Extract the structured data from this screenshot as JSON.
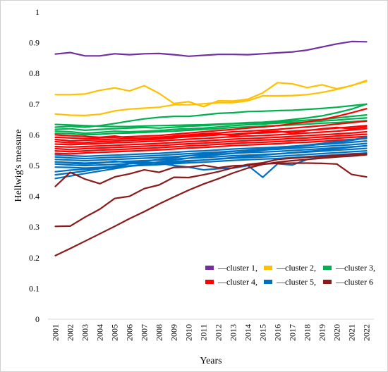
{
  "chart_data": {
    "type": "line",
    "title": "",
    "xlabel": "Years",
    "ylabel": "Hellwig's measure",
    "x": [
      "2001",
      "2002",
      "2003",
      "2004",
      "2005",
      "2006",
      "2007",
      "2008",
      "2009",
      "2010",
      "2011",
      "2012",
      "2013",
      "2014",
      "2015",
      "2016",
      "2017",
      "2018",
      "2019",
      "2020",
      "2021",
      "2022"
    ],
    "yticks": [
      "0",
      "0.1",
      "0.2",
      "0.3",
      "0.4",
      "0.5",
      "0.6",
      "0.7",
      "0.8",
      "0.9",
      "1"
    ],
    "ylim": [
      0,
      1
    ],
    "grid": false,
    "legend_position": "bottom-right",
    "legend": [
      {
        "label": "—cluster 1,",
        "color": "#7030a0"
      },
      {
        "label": "—cluster 2,",
        "color": "#ffc000"
      },
      {
        "label": "—cluster 3,",
        "color": "#00b050"
      },
      {
        "label": "—cluster 4,",
        "color": "#ff0000"
      },
      {
        "label": "—cluster 5,",
        "color": "#0070c0"
      },
      {
        "label": "—cluster 6",
        "color": "#8b1a1a"
      }
    ],
    "series": [
      {
        "cluster": 1,
        "color": "#7030a0",
        "values": [
          0.863,
          0.868,
          0.857,
          0.857,
          0.864,
          0.861,
          0.864,
          0.865,
          0.861,
          0.856,
          0.859,
          0.862,
          0.862,
          0.861,
          0.864,
          0.867,
          0.87,
          0.876,
          0.886,
          0.896,
          0.904,
          0.903
        ]
      },
      {
        "cluster": 2,
        "color": "#ffc000",
        "values": [
          0.731,
          0.731,
          0.733,
          0.745,
          0.753,
          0.743,
          0.76,
          0.735,
          0.702,
          0.708,
          0.692,
          0.711,
          0.71,
          0.716,
          0.737,
          0.77,
          0.766,
          0.754,
          0.763,
          0.75,
          0.76,
          0.777
        ]
      },
      {
        "cluster": 2,
        "color": "#ffc000",
        "values": [
          0.668,
          0.664,
          0.663,
          0.667,
          0.678,
          0.684,
          0.687,
          0.69,
          0.698,
          0.698,
          0.701,
          0.705,
          0.705,
          0.711,
          0.727,
          0.727,
          0.728,
          0.731,
          0.738,
          0.748,
          0.761,
          0.774
        ]
      },
      {
        "cluster": 3,
        "color": "#00b050",
        "values": [
          0.634,
          0.632,
          0.63,
          0.628,
          0.627,
          0.627,
          0.629,
          0.63,
          0.631,
          0.632,
          0.633,
          0.635,
          0.637,
          0.64,
          0.641,
          0.645,
          0.65,
          0.655,
          0.662,
          0.672,
          0.684,
          0.7
        ]
      },
      {
        "cluster": 3,
        "color": "#00b050",
        "values": [
          0.625,
          0.628,
          0.625,
          0.63,
          0.637,
          0.645,
          0.652,
          0.657,
          0.66,
          0.66,
          0.665,
          0.67,
          0.672,
          0.676,
          0.677,
          0.679,
          0.68,
          0.683,
          0.686,
          0.69,
          0.695,
          0.7
        ]
      },
      {
        "cluster": 3,
        "color": "#00b050",
        "values": [
          0.618,
          0.62,
          0.615,
          0.618,
          0.62,
          0.622,
          0.624,
          0.622,
          0.625,
          0.628,
          0.63,
          0.633,
          0.636,
          0.638,
          0.64,
          0.642,
          0.645,
          0.648,
          0.65,
          0.655,
          0.66,
          0.665
        ]
      },
      {
        "cluster": 3,
        "color": "#00b050",
        "values": [
          0.612,
          0.61,
          0.605,
          0.608,
          0.612,
          0.61,
          0.612,
          0.614,
          0.618,
          0.62,
          0.622,
          0.626,
          0.63,
          0.633,
          0.635,
          0.638,
          0.64,
          0.642,
          0.645,
          0.648,
          0.652,
          0.655
        ]
      },
      {
        "cluster": 3,
        "color": "#00b050",
        "values": [
          0.605,
          0.604,
          0.6,
          0.602,
          0.605,
          0.606,
          0.608,
          0.61,
          0.612,
          0.615,
          0.618,
          0.62,
          0.624,
          0.626,
          0.628,
          0.63,
          0.632,
          0.635,
          0.638,
          0.64,
          0.643,
          0.646
        ]
      },
      {
        "cluster": 4,
        "color": "#ff0000",
        "values": [
          0.592,
          0.59,
          0.588,
          0.59,
          0.592,
          0.594,
          0.596,
          0.598,
          0.602,
          0.606,
          0.61,
          0.614,
          0.618,
          0.622,
          0.626,
          0.63,
          0.636,
          0.642,
          0.65,
          0.66,
          0.672,
          0.685
        ]
      },
      {
        "cluster": 4,
        "color": "#ff0000",
        "values": [
          0.585,
          0.58,
          0.582,
          0.584,
          0.586,
          0.588,
          0.59,
          0.592,
          0.596,
          0.6,
          0.604,
          0.606,
          0.61,
          0.612,
          0.615,
          0.618,
          0.622,
          0.626,
          0.63,
          0.635,
          0.64,
          0.645
        ]
      },
      {
        "cluster": 4,
        "color": "#ff0000",
        "values": [
          0.578,
          0.574,
          0.575,
          0.578,
          0.58,
          0.582,
          0.584,
          0.586,
          0.59,
          0.594,
          0.596,
          0.6,
          0.602,
          0.605,
          0.606,
          0.609,
          0.612,
          0.615,
          0.618,
          0.622,
          0.626,
          0.63
        ]
      },
      {
        "cluster": 4,
        "color": "#ff0000",
        "values": [
          0.57,
          0.568,
          0.57,
          0.572,
          0.574,
          0.576,
          0.578,
          0.58,
          0.583,
          0.586,
          0.588,
          0.591,
          0.594,
          0.596,
          0.598,
          0.6,
          0.603,
          0.606,
          0.609,
          0.612,
          0.616,
          0.62
        ]
      },
      {
        "cluster": 4,
        "color": "#ff0000",
        "values": [
          0.562,
          0.56,
          0.562,
          0.564,
          0.566,
          0.568,
          0.57,
          0.572,
          0.575,
          0.578,
          0.58,
          0.583,
          0.586,
          0.588,
          0.59,
          0.592,
          0.595,
          0.598,
          0.6,
          0.603,
          0.606,
          0.61
        ]
      },
      {
        "cluster": 4,
        "color": "#ff0000",
        "values": [
          0.555,
          0.552,
          0.555,
          0.557,
          0.559,
          0.561,
          0.563,
          0.565,
          0.568,
          0.571,
          0.573,
          0.576,
          0.579,
          0.581,
          0.583,
          0.585,
          0.588,
          0.59,
          0.593,
          0.596,
          0.599,
          0.602
        ]
      },
      {
        "cluster": 4,
        "color": "#ff0000",
        "values": [
          0.548,
          0.545,
          0.548,
          0.55,
          0.552,
          0.554,
          0.556,
          0.558,
          0.561,
          0.564,
          0.566,
          0.569,
          0.572,
          0.574,
          0.576,
          0.578,
          0.581,
          0.583,
          0.586,
          0.589,
          0.592,
          0.595
        ]
      },
      {
        "cluster": 4,
        "color": "#ff0000",
        "values": [
          0.54,
          0.538,
          0.541,
          0.543,
          0.545,
          0.547,
          0.549,
          0.551,
          0.554,
          0.557,
          0.559,
          0.562,
          0.565,
          0.567,
          0.569,
          0.571,
          0.574,
          0.576,
          0.579,
          0.582,
          0.585,
          0.588
        ]
      },
      {
        "cluster": 4,
        "color": "#ff0000",
        "values": [
          0.6,
          0.597,
          0.595,
          0.592,
          0.596,
          0.59,
          0.588,
          0.59,
          0.594,
          0.598,
          0.6,
          0.602,
          0.598,
          0.604,
          0.61,
          0.612,
          0.606,
          0.614,
          0.62,
          0.624,
          0.62,
          0.626
        ]
      },
      {
        "cluster": 5,
        "color": "#0070c0",
        "values": [
          0.535,
          0.532,
          0.53,
          0.532,
          0.534,
          0.536,
          0.538,
          0.54,
          0.543,
          0.546,
          0.548,
          0.551,
          0.554,
          0.556,
          0.558,
          0.56,
          0.563,
          0.566,
          0.569,
          0.572,
          0.576,
          0.58
        ]
      },
      {
        "cluster": 5,
        "color": "#0070c0",
        "values": [
          0.528,
          0.525,
          0.523,
          0.525,
          0.527,
          0.529,
          0.531,
          0.533,
          0.536,
          0.539,
          0.541,
          0.544,
          0.547,
          0.549,
          0.551,
          0.553,
          0.556,
          0.559,
          0.562,
          0.565,
          0.568,
          0.572
        ]
      },
      {
        "cluster": 5,
        "color": "#0070c0",
        "values": [
          0.52,
          0.518,
          0.516,
          0.518,
          0.52,
          0.522,
          0.524,
          0.526,
          0.529,
          0.532,
          0.534,
          0.537,
          0.54,
          0.542,
          0.544,
          0.546,
          0.549,
          0.552,
          0.555,
          0.558,
          0.561,
          0.564
        ]
      },
      {
        "cluster": 5,
        "color": "#0070c0",
        "values": [
          0.512,
          0.51,
          0.508,
          0.51,
          0.512,
          0.514,
          0.516,
          0.518,
          0.521,
          0.524,
          0.526,
          0.529,
          0.532,
          0.534,
          0.536,
          0.538,
          0.541,
          0.544,
          0.547,
          0.55,
          0.553,
          0.556
        ]
      },
      {
        "cluster": 5,
        "color": "#0070c0",
        "values": [
          0.505,
          0.502,
          0.5,
          0.502,
          0.504,
          0.506,
          0.508,
          0.51,
          0.513,
          0.516,
          0.518,
          0.521,
          0.524,
          0.526,
          0.528,
          0.53,
          0.533,
          0.536,
          0.539,
          0.542,
          0.545,
          0.548
        ]
      },
      {
        "cluster": 5,
        "color": "#0070c0",
        "values": [
          0.495,
          0.494,
          0.492,
          0.494,
          0.497,
          0.499,
          0.501,
          0.503,
          0.506,
          0.509,
          0.511,
          0.514,
          0.517,
          0.519,
          0.521,
          0.523,
          0.526,
          0.529,
          0.532,
          0.535,
          0.538,
          0.541
        ]
      },
      {
        "cluster": 5,
        "color": "#0070c0",
        "values": [
          0.48,
          0.485,
          0.488,
          0.49,
          0.494,
          0.498,
          0.502,
          0.505,
          0.51,
          0.514,
          0.518,
          0.522,
          0.526,
          0.53,
          0.534,
          0.538,
          0.542,
          0.546,
          0.55,
          0.555,
          0.56,
          0.565
        ]
      },
      {
        "cluster": 5,
        "color": "#0070c0",
        "values": [
          0.47,
          0.476,
          0.482,
          0.49,
          0.498,
          0.506,
          0.514,
          0.52,
          0.526,
          0.532,
          0.537,
          0.542,
          0.546,
          0.55,
          0.554,
          0.558,
          0.562,
          0.567,
          0.572,
          0.578,
          0.584,
          0.592
        ]
      },
      {
        "cluster": 5,
        "color": "#0070c0",
        "values": [
          0.458,
          0.466,
          0.474,
          0.482,
          0.49,
          0.498,
          0.505,
          0.512,
          0.518,
          0.524,
          0.53,
          0.535,
          0.54,
          0.545,
          0.55,
          0.555,
          0.56,
          0.565,
          0.57,
          0.576,
          0.582,
          0.59
        ]
      },
      {
        "cluster": 5,
        "color": "#0070c0",
        "values": [
          0.512,
          0.508,
          0.505,
          0.508,
          0.514,
          0.51,
          0.512,
          0.508,
          0.5,
          0.495,
          0.486,
          0.49,
          0.492,
          0.5,
          0.462,
          0.506,
          0.502,
          0.52,
          0.528,
          0.53,
          0.532,
          0.54
        ]
      },
      {
        "cluster": 6,
        "color": "#8b1a1a",
        "values": [
          0.432,
          0.478,
          0.456,
          0.441,
          0.463,
          0.473,
          0.486,
          0.478,
          0.494,
          0.495,
          0.501,
          0.493,
          0.499,
          0.501,
          0.505,
          0.507,
          0.508,
          0.508,
          0.507,
          0.505,
          0.471,
          0.463
        ]
      },
      {
        "cluster": 6,
        "color": "#8b1a1a",
        "values": [
          0.302,
          0.303,
          0.332,
          0.358,
          0.393,
          0.4,
          0.425,
          0.437,
          0.462,
          0.461,
          0.47,
          0.48,
          0.493,
          0.504,
          0.509,
          0.52,
          0.524,
          0.527,
          0.53,
          0.533,
          0.537,
          0.538
        ]
      },
      {
        "cluster": 6,
        "color": "#8b1a1a",
        "values": [
          0.207,
          0.23,
          0.254,
          0.278,
          0.302,
          0.327,
          0.35,
          0.375,
          0.398,
          0.42,
          0.44,
          0.457,
          0.476,
          0.492,
          0.504,
          0.511,
          0.516,
          0.52,
          0.524,
          0.528,
          0.531,
          0.535
        ]
      }
    ]
  }
}
